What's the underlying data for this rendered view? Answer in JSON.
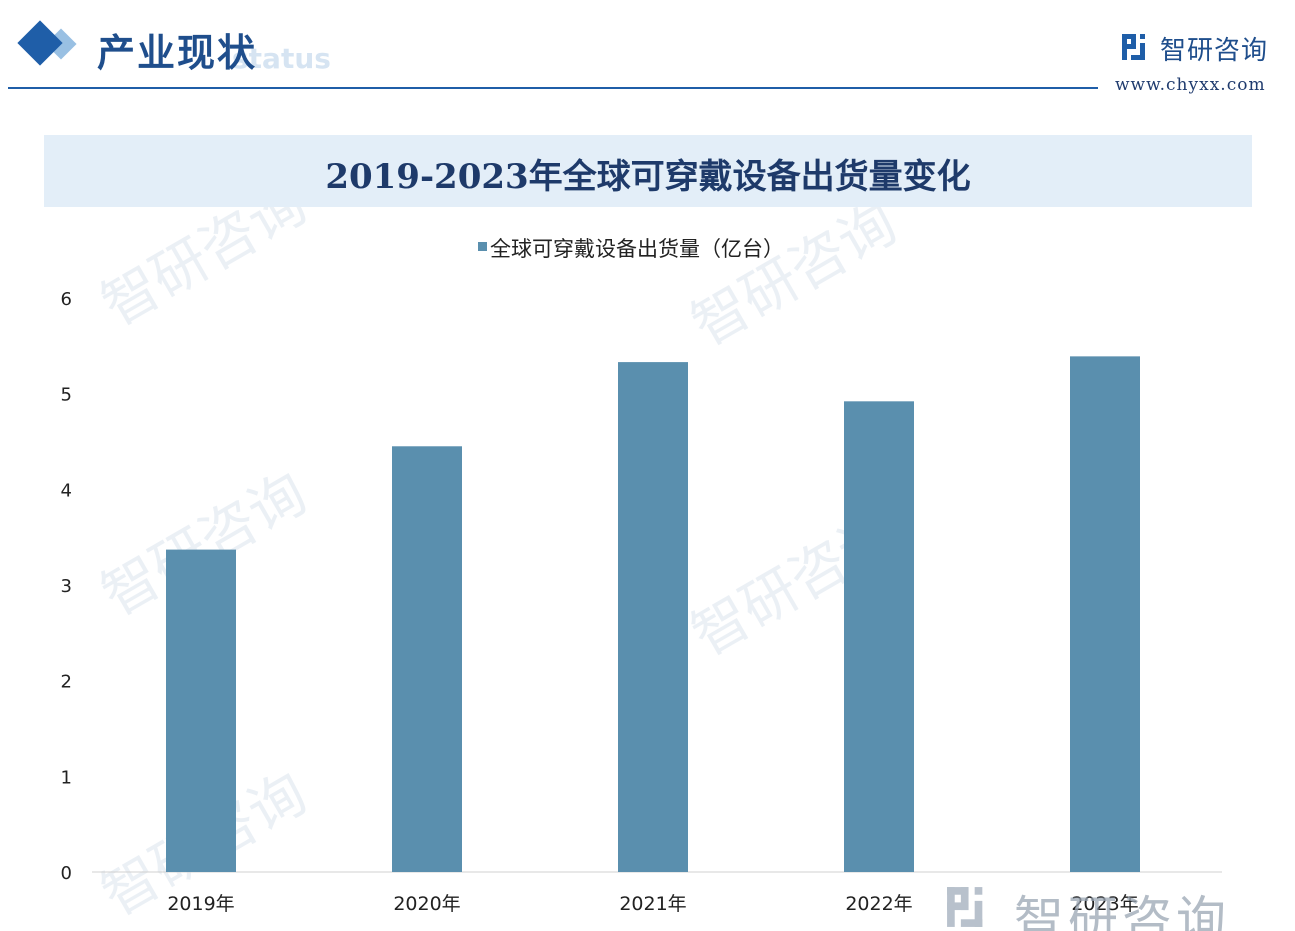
{
  "header": {
    "section_title": "产业现状",
    "section_subtitle": "status",
    "logo_name": "智研咨询",
    "site_url": "www.chyxx.com"
  },
  "watermark_text": "智研咨询",
  "colors": {
    "bar": "#5a8fae",
    "accent": "#1f5ea8",
    "title_band": "#e3eef8"
  },
  "chart_data": {
    "type": "bar",
    "title": "2019-2023年全球可穿戴设备出货量变化",
    "categories": [
      "2019年",
      "2020年",
      "2021年",
      "2022年",
      "2023年"
    ],
    "series": [
      {
        "name": "全球可穿戴设备出货量（亿台）",
        "values": [
          3.37,
          4.45,
          5.33,
          4.92,
          5.39
        ]
      }
    ],
    "ylim": [
      0,
      6
    ],
    "yticks": [
      "0",
      "1",
      "2",
      "3",
      "4",
      "5",
      "6"
    ],
    "grid": false,
    "legend_position": "top-center"
  }
}
